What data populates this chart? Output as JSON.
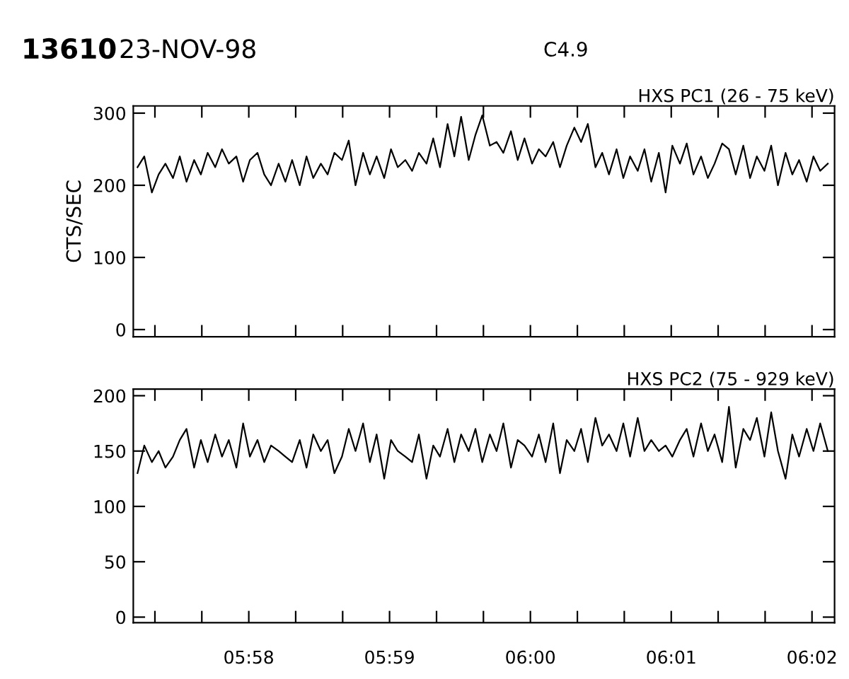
{
  "chart_data": [
    {
      "type": "line",
      "title": "HXS PC1 (26 - 75 keV)",
      "ylabel": "CTS/SEC",
      "annotations": [
        "13610",
        "23-NOV-98",
        "C4.9"
      ],
      "tick_labels": "y",
      "grid": false,
      "marker": "none",
      "line_style": "solid",
      "x": [
        5.9535,
        5.9543,
        5.9552,
        5.956,
        5.9568,
        5.9577,
        5.9585,
        5.9593,
        5.9602,
        5.961,
        5.9618,
        5.9627,
        5.9635,
        5.9643,
        5.9652,
        5.966,
        5.9668,
        5.9677,
        5.9685,
        5.9693,
        5.9702,
        5.971,
        5.9718,
        5.9727,
        5.9735,
        5.9743,
        5.9752,
        5.976,
        5.9768,
        5.9777,
        5.9785,
        5.9793,
        5.9802,
        5.981,
        5.9818,
        5.9827,
        5.9835,
        5.9843,
        5.9852,
        5.986,
        5.9868,
        5.9877,
        5.9885,
        5.9893,
        5.9902,
        5.991,
        5.9918,
        5.9927,
        5.9935,
        5.9943,
        5.9952,
        5.996,
        5.9968,
        5.9977,
        5.9985,
        5.9993,
        6.0002,
        6.001,
        6.0018,
        6.0027,
        6.0035,
        6.0043,
        6.0052,
        6.006,
        6.0068,
        6.0077,
        6.0085,
        6.0093,
        6.0102,
        6.011,
        6.0118,
        6.0127,
        6.0135,
        6.0143,
        6.0152,
        6.016,
        6.0168,
        6.0177,
        6.0185,
        6.0193,
        6.0202,
        6.021,
        6.0218,
        6.0227,
        6.0235,
        6.0243,
        6.0252,
        6.026,
        6.0268,
        6.0277,
        6.0285,
        6.0293,
        6.0302,
        6.031,
        6.0318,
        6.0327,
        6.0335,
        6.0343,
        6.0352
      ],
      "series": [
        {
          "color": "#000000",
          "values": [
            225,
            240,
            190,
            215,
            230,
            210,
            240,
            205,
            235,
            215,
            245,
            225,
            250,
            230,
            240,
            205,
            235,
            245,
            215,
            200,
            230,
            205,
            235,
            200,
            240,
            210,
            230,
            215,
            245,
            235,
            262,
            200,
            245,
            215,
            240,
            210,
            250,
            225,
            235,
            220,
            245,
            230,
            265,
            225,
            285,
            240,
            295,
            235,
            270,
            297,
            255,
            260,
            245,
            275,
            235,
            265,
            230,
            250,
            240,
            260,
            225,
            255,
            280,
            260,
            285,
            225,
            245,
            215,
            250,
            210,
            240,
            220,
            250,
            205,
            245,
            190,
            255,
            230,
            258,
            215,
            240,
            210,
            230,
            258,
            250,
            215,
            255,
            210,
            240,
            220,
            255,
            200,
            245,
            215,
            235,
            205,
            240,
            220,
            230
          ]
        }
      ],
      "xlim": [
        5.953,
        6.036
      ],
      "ylim": [
        -10,
        310
      ],
      "yticks": [
        0,
        100,
        200,
        300
      ],
      "xticks": [
        {
          "value": 5.95556,
          "label": null
        },
        {
          "value": 5.96111,
          "label": null
        },
        {
          "value": 5.96667,
          "label": null
        },
        {
          "value": 5.97222,
          "label": null
        },
        {
          "value": 5.97778,
          "label": null
        },
        {
          "value": 5.98333,
          "label": null
        },
        {
          "value": 5.98889,
          "label": null
        },
        {
          "value": 5.99444,
          "label": null
        },
        {
          "value": 6.0,
          "label": null
        },
        {
          "value": 6.00556,
          "label": null
        },
        {
          "value": 6.01111,
          "label": null
        },
        {
          "value": 6.01667,
          "label": null
        },
        {
          "value": 6.02222,
          "label": null
        },
        {
          "value": 6.02778,
          "label": null
        },
        {
          "value": 6.03333,
          "label": null
        }
      ]
    },
    {
      "type": "line",
      "title": "HXS PC2 (75 - 929 keV)",
      "grid": false,
      "marker": "none",
      "line_style": "solid",
      "x": [
        5.9535,
        5.9543,
        5.9552,
        5.956,
        5.9568,
        5.9577,
        5.9585,
        5.9593,
        5.9602,
        5.961,
        5.9618,
        5.9627,
        5.9635,
        5.9643,
        5.9652,
        5.966,
        5.9668,
        5.9677,
        5.9685,
        5.9693,
        5.9702,
        5.971,
        5.9718,
        5.9727,
        5.9735,
        5.9743,
        5.9752,
        5.976,
        5.9768,
        5.9777,
        5.9785,
        5.9793,
        5.9802,
        5.981,
        5.9818,
        5.9827,
        5.9835,
        5.9843,
        5.9852,
        5.986,
        5.9868,
        5.9877,
        5.9885,
        5.9893,
        5.9902,
        5.991,
        5.9918,
        5.9927,
        5.9935,
        5.9943,
        5.9952,
        5.996,
        5.9968,
        5.9977,
        5.9985,
        5.9993,
        6.0002,
        6.001,
        6.0018,
        6.0027,
        6.0035,
        6.0043,
        6.0052,
        6.006,
        6.0068,
        6.0077,
        6.0085,
        6.0093,
        6.0102,
        6.011,
        6.0118,
        6.0127,
        6.0135,
        6.0143,
        6.0152,
        6.016,
        6.0168,
        6.0177,
        6.0185,
        6.0193,
        6.0202,
        6.021,
        6.0218,
        6.0227,
        6.0235,
        6.0243,
        6.0252,
        6.026,
        6.0268,
        6.0277,
        6.0285,
        6.0293,
        6.0302,
        6.031,
        6.0318,
        6.0327,
        6.0335,
        6.0343,
        6.0352
      ],
      "series": [
        {
          "color": "#000000",
          "values": [
            130,
            155,
            140,
            150,
            135,
            145,
            160,
            170,
            135,
            160,
            140,
            165,
            145,
            160,
            135,
            175,
            145,
            160,
            140,
            155,
            150,
            145,
            140,
            160,
            135,
            165,
            150,
            160,
            130,
            145,
            170,
            150,
            175,
            140,
            165,
            125,
            160,
            150,
            145,
            140,
            165,
            125,
            155,
            145,
            170,
            140,
            165,
            150,
            170,
            140,
            165,
            150,
            175,
            135,
            160,
            155,
            145,
            165,
            140,
            175,
            130,
            160,
            150,
            170,
            140,
            180,
            155,
            165,
            150,
            175,
            145,
            180,
            150,
            160,
            150,
            155,
            145,
            160,
            170,
            145,
            175,
            150,
            165,
            140,
            190,
            135,
            170,
            160,
            180,
            145,
            185,
            150,
            125,
            165,
            145,
            170,
            150,
            175,
            150
          ]
        }
      ],
      "xlim": [
        5.953,
        6.036
      ],
      "ylim": [
        -5,
        206
      ],
      "yticks": [
        0,
        50,
        100,
        150,
        200
      ],
      "xticks": [
        {
          "value": 5.95556,
          "label": null
        },
        {
          "value": 5.96111,
          "label": null
        },
        {
          "value": 5.96667,
          "label": "05:58"
        },
        {
          "value": 5.97222,
          "label": null
        },
        {
          "value": 5.97778,
          "label": null
        },
        {
          "value": 5.98333,
          "label": "05:59"
        },
        {
          "value": 5.98889,
          "label": null
        },
        {
          "value": 5.99444,
          "label": null
        },
        {
          "value": 6.0,
          "label": "06:00"
        },
        {
          "value": 6.00556,
          "label": null
        },
        {
          "value": 6.01111,
          "label": null
        },
        {
          "value": 6.01667,
          "label": "06:01"
        },
        {
          "value": 6.02222,
          "label": null
        },
        {
          "value": 6.02778,
          "label": null
        },
        {
          "value": 6.03333,
          "label": "06:02"
        }
      ]
    }
  ]
}
